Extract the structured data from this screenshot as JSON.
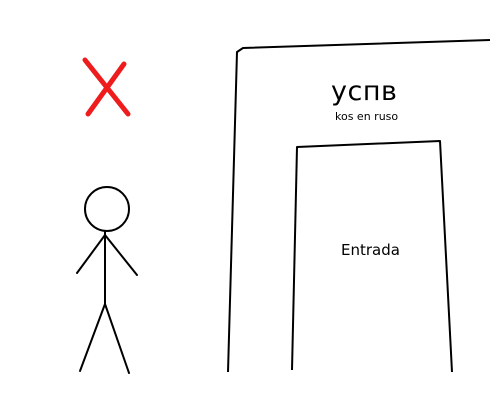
{
  "building": {
    "sign_title": "уcпв",
    "sign_subtitle": "kos en ruso",
    "door_label": "Entrada"
  },
  "colors": {
    "ink": "#000000",
    "cross": "#ee1c1c",
    "background": "#ffffff"
  }
}
